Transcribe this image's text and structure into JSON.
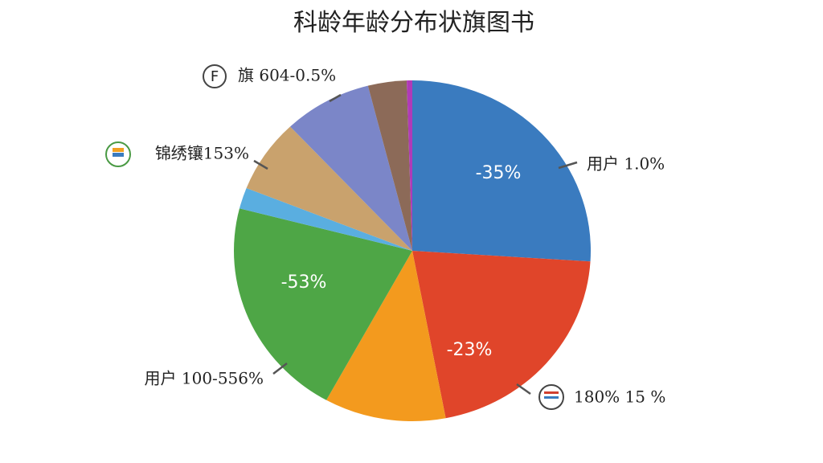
{
  "chart_data": {
    "type": "pie",
    "title": "科龄年龄分布状旗图书",
    "values": [
      26,
      21,
      11,
      21,
      2,
      7,
      8,
      3.5,
      0.5
    ],
    "colors": [
      "#3a7bbf",
      "#e0452a",
      "#f39a1e",
      "#4ea646",
      "#5aaee0",
      "#c9a26d",
      "#7b86c8",
      "#8c6a58",
      "#b03ab8"
    ],
    "inner_labels": [
      "-35%",
      "-23%",
      "-53%"
    ],
    "outer_labels": [
      "用户  1.0%",
      "180% 15 %",
      "用户 100-556%",
      "锦绣镶153%",
      "旗 604-0.5%"
    ]
  }
}
